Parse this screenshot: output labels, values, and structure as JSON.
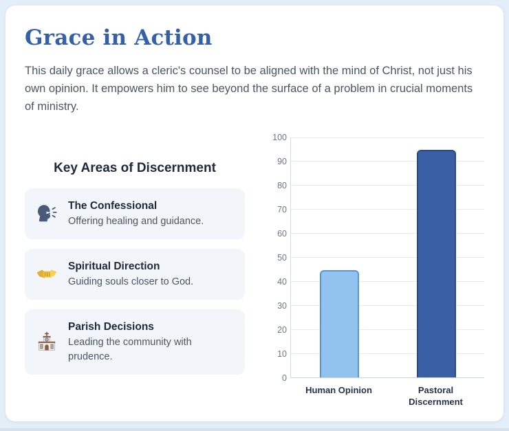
{
  "card": {
    "title": "Grace in Action",
    "description": "This daily grace allows a cleric's counsel to be aligned with the mind of Christ, not just his own opinion. It empowers him to see beyond the surface of a problem in crucial moments of ministry."
  },
  "key_areas": {
    "heading": "Key Areas of Discernment",
    "items": [
      {
        "icon": "speaking-head-icon",
        "title": "The Confessional",
        "description": "Offering healing and guidance."
      },
      {
        "icon": "handshake-icon",
        "title": "Spiritual Direction",
        "description": "Guiding souls closer to God."
      },
      {
        "icon": "church-icon",
        "title": "Parish Decisions",
        "description": "Leading the community with prudence."
      }
    ]
  },
  "chart_data": {
    "type": "bar",
    "categories": [
      "Human Opinion",
      "Pastoral Discernment"
    ],
    "values": [
      44.5,
      94.5
    ],
    "title": "",
    "xlabel": "",
    "ylabel": "",
    "ylim": [
      0,
      100
    ],
    "ytick_step": 10,
    "grid": true,
    "legend": "none",
    "bar_fill_colors": [
      "#92c3ee",
      "#3a5fa4"
    ],
    "bar_border_colors": [
      "#5a94d6",
      "#2d4a7d"
    ]
  },
  "colors": {
    "page_background": "#e4eef9",
    "card_background": "#ffffff",
    "title_blue": "#3560a8",
    "heading_navy": "#1e293b",
    "body_gray": "#4b5563",
    "item_background": "#f2f5f9",
    "gridline": "#e6ebf2",
    "tick_label": "#6b7684"
  }
}
